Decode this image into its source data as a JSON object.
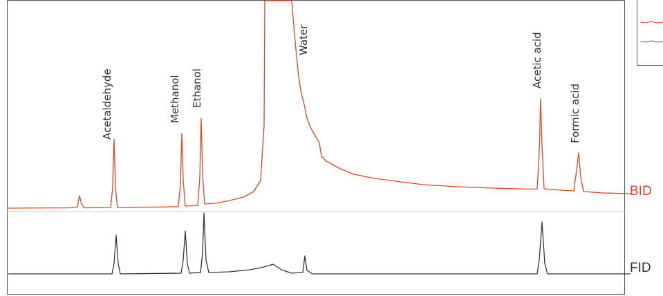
{
  "chart_data": {
    "type": "line",
    "title": "",
    "xlabel": "",
    "ylabel": "",
    "grid": false,
    "peak_labels": [
      "Acetaldehyde",
      "Methanol",
      "Ethanol",
      "Water",
      "Acetic acid",
      "Formic acid"
    ],
    "series": [
      {
        "name": "BID",
        "color": "#e8411f",
        "baseline": 0,
        "points": [
          [
            0,
            0
          ],
          [
            90,
            0.5
          ],
          [
            100,
            2
          ],
          [
            103,
            18
          ],
          [
            106,
            6
          ],
          [
            110,
            0.5
          ],
          [
            148,
            1
          ],
          [
            151,
            30
          ],
          [
            153,
            100
          ],
          [
            155,
            30
          ],
          [
            158,
            1
          ],
          [
            246,
            2
          ],
          [
            249,
            35
          ],
          [
            251,
            108
          ],
          [
            253,
            40
          ],
          [
            256,
            3
          ],
          [
            274,
            4
          ],
          [
            277,
            45
          ],
          [
            279,
            130
          ],
          [
            281,
            50
          ],
          [
            284,
            6
          ],
          [
            300,
            7
          ],
          [
            320,
            11
          ],
          [
            340,
            16
          ],
          [
            355,
            24
          ],
          [
            365,
            40
          ],
          [
            370,
            120
          ],
          [
            371,
            300
          ],
          [
            372,
            420
          ],
          [
            378,
            430
          ],
          [
            405,
            420
          ],
          [
            410,
            300
          ],
          [
            415,
            240
          ],
          [
            420,
            190
          ],
          [
            424,
            165
          ],
          [
            426,
            158
          ],
          [
            428,
            150
          ],
          [
            432,
            130
          ],
          [
            438,
            115
          ],
          [
            445,
            103
          ],
          [
            450,
            94
          ],
          [
            453,
            75
          ],
          [
            460,
            68
          ],
          [
            480,
            57
          ],
          [
            500,
            49
          ],
          [
            530,
            43
          ],
          [
            560,
            39
          ],
          [
            600,
            34
          ],
          [
            650,
            31
          ],
          [
            700,
            29
          ],
          [
            740,
            28
          ],
          [
            760,
            27.5
          ],
          [
            765,
            28
          ],
          [
            768,
            80
          ],
          [
            770,
            158
          ],
          [
            772,
            90
          ],
          [
            775,
            28
          ],
          [
            800,
            26
          ],
          [
            818,
            25
          ],
          [
            822,
            55
          ],
          [
            825,
            80
          ],
          [
            828,
            45
          ],
          [
            832,
            24
          ],
          [
            860,
            22
          ],
          [
            900,
            21
          ]
        ]
      },
      {
        "name": "FID",
        "color": "#333333",
        "baseline": 0,
        "points": [
          [
            0,
            0
          ],
          [
            150,
            0
          ],
          [
            153,
            15
          ],
          [
            156,
            56
          ],
          [
            159,
            15
          ],
          [
            162,
            0
          ],
          [
            250,
            1
          ],
          [
            253,
            20
          ],
          [
            256,
            62
          ],
          [
            259,
            15
          ],
          [
            262,
            1
          ],
          [
            278,
            2
          ],
          [
            281,
            30
          ],
          [
            283,
            88
          ],
          [
            286,
            20
          ],
          [
            290,
            2
          ],
          [
            320,
            3
          ],
          [
            350,
            6
          ],
          [
            370,
            10
          ],
          [
            383,
            14
          ],
          [
            395,
            6
          ],
          [
            410,
            1
          ],
          [
            426,
            2
          ],
          [
            429,
            26
          ],
          [
            432,
            5
          ],
          [
            440,
            0
          ],
          [
            700,
            0
          ],
          [
            765,
            0
          ],
          [
            768,
            20
          ],
          [
            772,
            75
          ],
          [
            776,
            15
          ],
          [
            780,
            0
          ],
          [
            900,
            0
          ]
        ]
      }
    ]
  }
}
